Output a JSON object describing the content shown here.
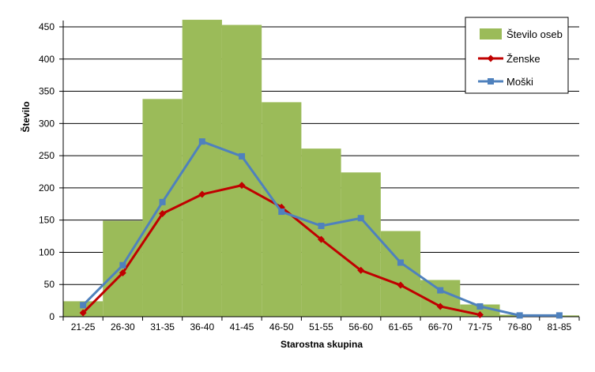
{
  "chart_data": {
    "type": "bar",
    "xlabel": "Starostna skupina",
    "ylabel": "Število",
    "ylim": [
      0,
      450
    ],
    "yticks": [
      0,
      50,
      100,
      150,
      200,
      250,
      300,
      350,
      400,
      450
    ],
    "grid": true,
    "legend_position": "top-right",
    "categories": [
      "21-25",
      "26-30",
      "31-35",
      "36-40",
      "41-45",
      "46-50",
      "51-55",
      "56-60",
      "61-65",
      "66-70",
      "71-75",
      "76-80",
      "81-85"
    ],
    "series": [
      {
        "name": "Število oseb",
        "type": "bar",
        "color": "#9BBB59",
        "values": [
          24,
          149,
          338,
          461,
          453,
          333,
          261,
          224,
          133,
          57,
          19,
          3,
          2
        ]
      },
      {
        "name": "Ženske",
        "type": "line",
        "color": "#C00000",
        "marker": "diamond",
        "values": [
          6,
          68,
          160,
          190,
          204,
          170,
          120,
          72,
          49,
          16,
          3,
          null,
          null
        ]
      },
      {
        "name": "Moški",
        "type": "line",
        "color": "#4F81BD",
        "marker": "square",
        "values": [
          18,
          80,
          178,
          272,
          249,
          163,
          141,
          153,
          84,
          41,
          16,
          2,
          2
        ]
      }
    ]
  }
}
